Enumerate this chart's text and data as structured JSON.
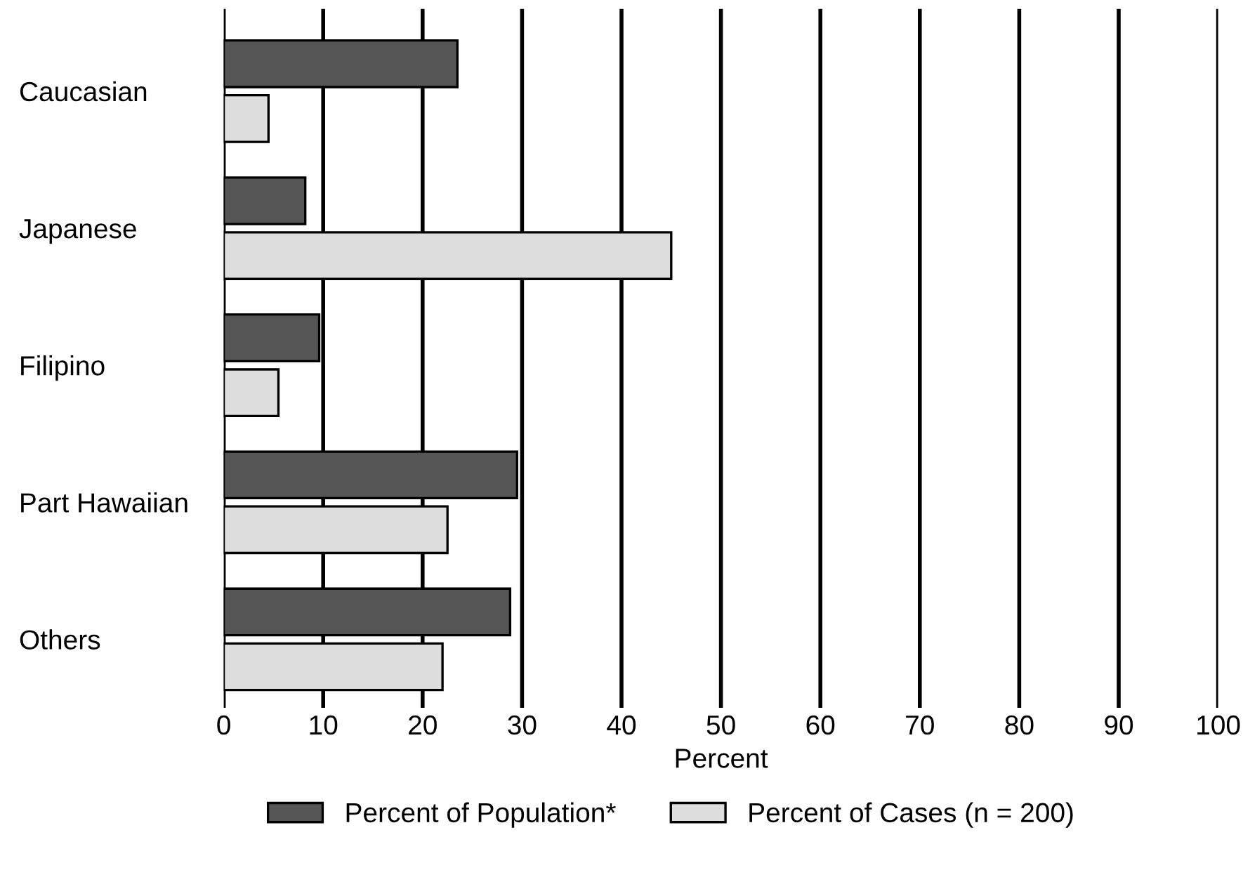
{
  "chart_data": {
    "type": "bar",
    "orientation": "horizontal",
    "xlabel": "Percent",
    "categories": [
      "Caucasian",
      "Japanese",
      "Filipino",
      "Part Hawaiian",
      "Others"
    ],
    "series": [
      {
        "name": "Percent of Population*",
        "color": "#555555",
        "values": [
          23.5,
          8.2,
          9.6,
          29.5,
          28.8
        ]
      },
      {
        "name": "Percent of Cases (n = 200)",
        "color": "#dddddd",
        "values": [
          4.5,
          45,
          5.5,
          22.5,
          22
        ]
      }
    ],
    "xlim": [
      0,
      100
    ],
    "xticks": [
      0,
      10,
      20,
      30,
      40,
      50,
      60,
      70,
      80,
      90,
      100
    ],
    "grid": "x",
    "legend": "bottom"
  }
}
